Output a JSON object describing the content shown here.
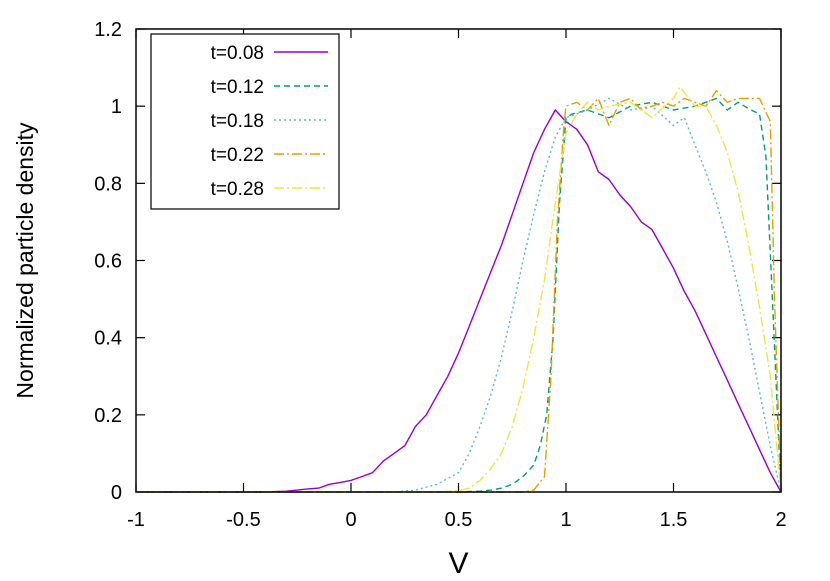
{
  "chart_data": {
    "type": "line",
    "title": "",
    "xlabel": "V",
    "ylabel": "Normalized particle density",
    "xlim": [
      -1,
      2
    ],
    "ylim": [
      0,
      1.2
    ],
    "xticks": [
      "-1",
      "-0.5",
      "0",
      "0.5",
      "1",
      "1.5",
      "2"
    ],
    "yticks": [
      "0",
      "0.2",
      "0.4",
      "0.6",
      "0.8",
      "1",
      "1.2"
    ],
    "grid": false,
    "legend_position": "top-left",
    "series": [
      {
        "name": "t=0.08",
        "color": "#9400d3",
        "dash": "solid",
        "x": [
          -1,
          -0.4,
          -0.3,
          -0.2,
          -0.15,
          -0.1,
          -0.05,
          0,
          0.05,
          0.1,
          0.15,
          0.2,
          0.25,
          0.3,
          0.35,
          0.4,
          0.45,
          0.5,
          0.55,
          0.6,
          0.65,
          0.7,
          0.75,
          0.8,
          0.85,
          0.9,
          0.95,
          1.0,
          1.05,
          1.1,
          1.15,
          1.2,
          1.25,
          1.3,
          1.35,
          1.4,
          1.45,
          1.5,
          1.55,
          1.6,
          1.65,
          1.7,
          1.75,
          1.8,
          1.85,
          1.9,
          1.95,
          2.0
        ],
        "y": [
          0,
          0,
          0.002,
          0.008,
          0.01,
          0.02,
          0.025,
          0.03,
          0.04,
          0.05,
          0.08,
          0.1,
          0.12,
          0.17,
          0.2,
          0.25,
          0.3,
          0.36,
          0.43,
          0.5,
          0.57,
          0.64,
          0.72,
          0.8,
          0.88,
          0.94,
          0.99,
          0.96,
          0.94,
          0.9,
          0.83,
          0.81,
          0.77,
          0.74,
          0.7,
          0.68,
          0.63,
          0.58,
          0.52,
          0.47,
          0.41,
          0.35,
          0.29,
          0.23,
          0.17,
          0.11,
          0.05,
          0
        ]
      },
      {
        "name": "t=0.12",
        "color": "#009e73",
        "dash": "6,4",
        "x": [
          -1,
          0.5,
          0.6,
          0.65,
          0.7,
          0.75,
          0.8,
          0.85,
          0.88,
          0.91,
          0.94,
          0.97,
          1.0,
          1.03,
          1.1,
          1.2,
          1.3,
          1.4,
          1.5,
          1.6,
          1.7,
          1.75,
          1.8,
          1.83,
          1.86,
          1.9,
          1.93,
          1.96,
          2.0
        ],
        "y": [
          0,
          0,
          0.002,
          0.005,
          0.01,
          0.02,
          0.04,
          0.07,
          0.12,
          0.2,
          0.4,
          0.75,
          0.97,
          0.98,
          0.99,
          0.97,
          1.0,
          1.01,
          0.99,
          1.0,
          1.02,
          0.99,
          1.01,
          1.0,
          0.99,
          0.98,
          0.87,
          0.5,
          0
        ]
      },
      {
        "name": "t=0.18",
        "color": "#56b4e9",
        "dash": "2,3",
        "x": [
          -1,
          0.2,
          0.3,
          0.4,
          0.5,
          0.55,
          0.6,
          0.65,
          0.7,
          0.75,
          0.8,
          0.85,
          0.9,
          0.95,
          1.0,
          1.05,
          1.1,
          1.2,
          1.3,
          1.4,
          1.5,
          1.55,
          1.6,
          1.65,
          1.7,
          1.75,
          1.8,
          1.85,
          1.9,
          1.95,
          2.0
        ],
        "y": [
          0,
          0,
          0.005,
          0.02,
          0.05,
          0.1,
          0.17,
          0.25,
          0.35,
          0.47,
          0.6,
          0.72,
          0.83,
          0.92,
          0.97,
          0.98,
          0.99,
          1.02,
          0.99,
          1.0,
          0.95,
          0.97,
          0.9,
          0.83,
          0.75,
          0.65,
          0.53,
          0.4,
          0.26,
          0.12,
          0
        ]
      },
      {
        "name": "t=0.22",
        "color": "#e69f00",
        "dash": "10,3,2,3",
        "x": [
          -1,
          0.8,
          0.85,
          0.9,
          0.93,
          0.96,
          0.99,
          1.0,
          1.05,
          1.1,
          1.15,
          1.2,
          1.25,
          1.3,
          1.35,
          1.4,
          1.45,
          1.5,
          1.55,
          1.6,
          1.65,
          1.7,
          1.75,
          1.8,
          1.85,
          1.9,
          1.95,
          1.97,
          2.0
        ],
        "y": [
          0,
          0,
          0.005,
          0.04,
          0.3,
          0.7,
          0.95,
          1.0,
          1.01,
          0.99,
          1.02,
          0.95,
          1.01,
          1.02,
          0.99,
          1.0,
          1.01,
          1.0,
          1.02,
          1.01,
          1.0,
          1.04,
          1.01,
          1.02,
          1.02,
          1.02,
          0.96,
          0.5,
          0
        ]
      },
      {
        "name": "t=0.28",
        "color": "#f0e442",
        "dash": "10,3,2,3",
        "x": [
          -1,
          0.4,
          0.5,
          0.55,
          0.6,
          0.65,
          0.7,
          0.75,
          0.8,
          0.85,
          0.9,
          0.95,
          1.0,
          1.05,
          1.1,
          1.15,
          1.2,
          1.3,
          1.4,
          1.5,
          1.53,
          1.6,
          1.65,
          1.7,
          1.75,
          1.8,
          1.85,
          1.9,
          1.95,
          2.0
        ],
        "y": [
          0,
          0,
          0.003,
          0.01,
          0.03,
          0.06,
          0.1,
          0.17,
          0.27,
          0.4,
          0.55,
          0.75,
          0.93,
          0.98,
          1.01,
          0.99,
          1.0,
          1.01,
          0.97,
          1.02,
          1.05,
          1.0,
          1.0,
          0.95,
          0.88,
          0.78,
          0.64,
          0.48,
          0.3,
          0
        ]
      }
    ]
  }
}
